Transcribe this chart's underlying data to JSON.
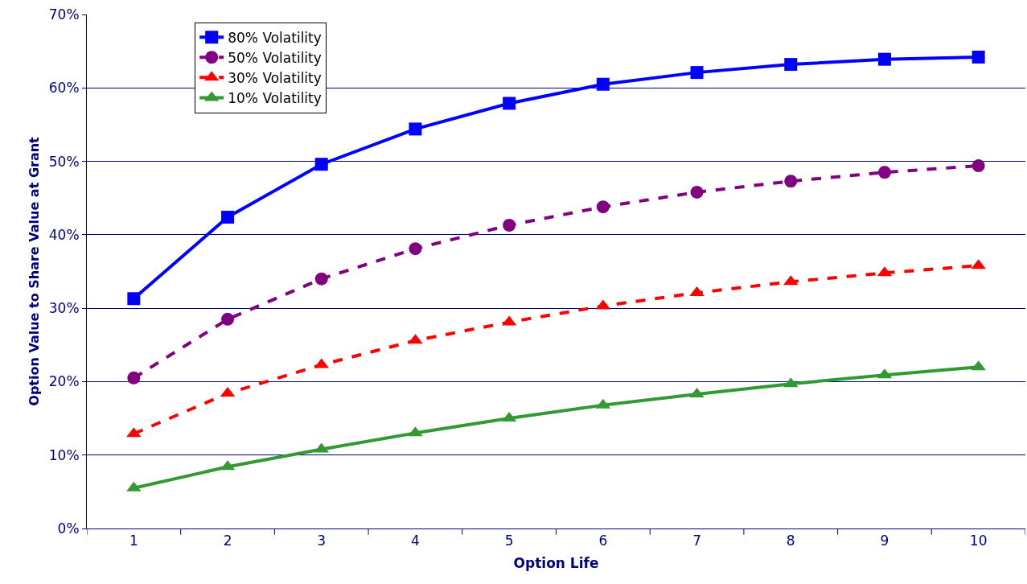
{
  "chart_data": {
    "type": "line",
    "xlabel": "Option Life",
    "ylabel": "Option Value to Share Value at Grant",
    "categories": [
      "1",
      "2",
      "3",
      "4",
      "5",
      "6",
      "7",
      "8",
      "9",
      "10"
    ],
    "series": [
      {
        "name": "80% Volatility",
        "color": "#0000ff",
        "marker": "square",
        "line_style": "solid",
        "values": [
          31.3,
          42.4,
          49.6,
          54.4,
          57.9,
          60.5,
          62.1,
          63.2,
          63.9,
          64.2
        ]
      },
      {
        "name": "50% Volatility",
        "color": "#800080",
        "marker": "circle",
        "line_style": "dashed",
        "values": [
          20.5,
          28.5,
          34.0,
          38.1,
          41.3,
          43.8,
          45.8,
          47.3,
          48.5,
          49.4
        ]
      },
      {
        "name": "30% Volatility",
        "color": "#ff0000",
        "marker": "triangle",
        "line_style": "dashed",
        "values": [
          12.9,
          18.4,
          22.3,
          25.6,
          28.1,
          30.3,
          32.1,
          33.6,
          34.8,
          35.8
        ]
      },
      {
        "name": "10% Volatility",
        "color": "#339933",
        "marker": "triangle",
        "line_style": "solid",
        "values": [
          5.5,
          8.4,
          10.8,
          13.0,
          15.0,
          16.8,
          18.3,
          19.7,
          20.9,
          22.0
        ]
      }
    ],
    "ylim": [
      0,
      70
    ],
    "yticks": [
      {
        "value": 0,
        "label": "0%"
      },
      {
        "value": 10,
        "label": "10%"
      },
      {
        "value": 20,
        "label": "20%"
      },
      {
        "value": 30,
        "label": "30%"
      },
      {
        "value": 40,
        "label": "40%"
      },
      {
        "value": 50,
        "label": "50%"
      },
      {
        "value": 60,
        "label": "60%"
      },
      {
        "value": 70,
        "label": "70%"
      }
    ],
    "grid": "y",
    "legend": "top left"
  }
}
